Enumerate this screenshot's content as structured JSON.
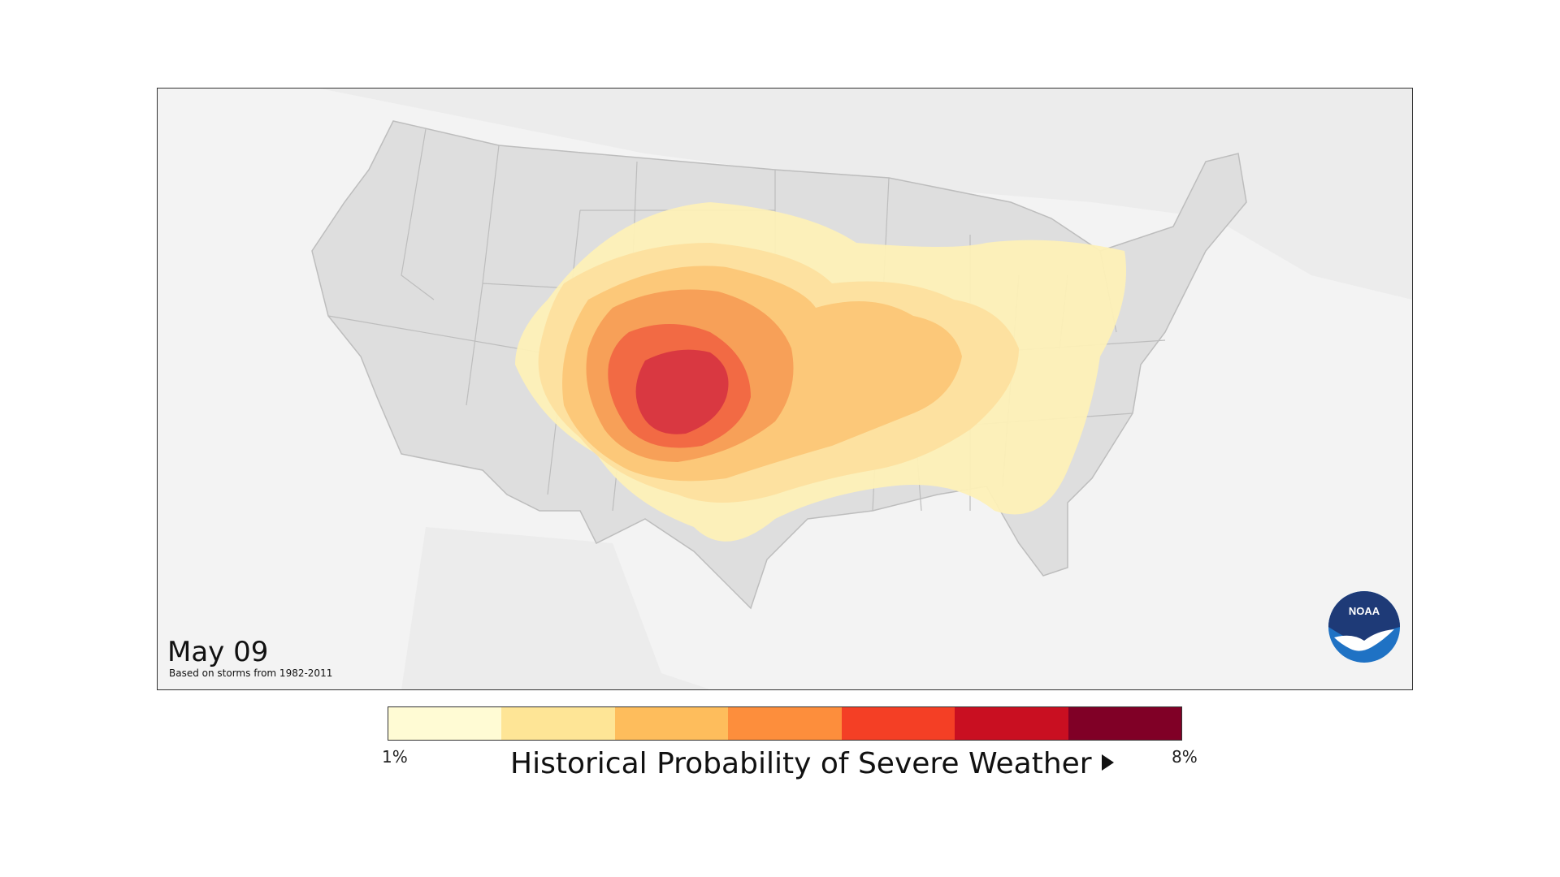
{
  "map": {
    "date": "May 09",
    "subtitle": "Based on storms from 1982-2011",
    "logo_text": "NOAA"
  },
  "legend": {
    "min_label": "1%",
    "max_label": "8%",
    "title": "Historical Probability of Severe Weather",
    "colors": [
      "#fffbd4",
      "#fee596",
      "#febd5c",
      "#fd8e3c",
      "#f43f25",
      "#c90f21",
      "#800026"
    ]
  },
  "colors": {
    "land": "#dedede",
    "water": "#f3f3f3",
    "state_border": "#bdbdbd"
  }
}
